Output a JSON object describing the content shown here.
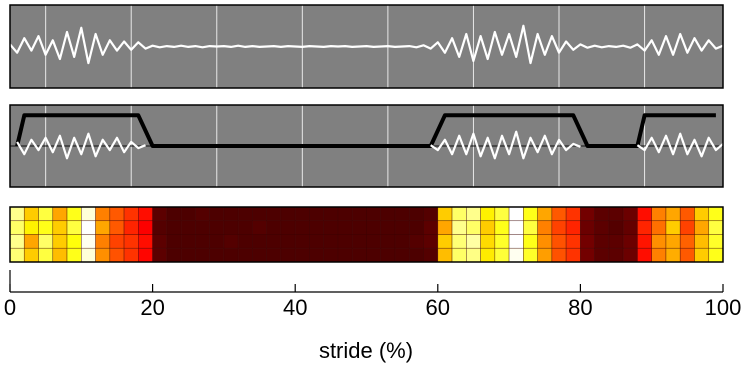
{
  "chart_data": [
    {
      "type": "line",
      "xlim": [
        0,
        100
      ],
      "ylim": [
        -1,
        1
      ],
      "xgrid": [
        5,
        17,
        29,
        41,
        53,
        65,
        77,
        89
      ],
      "x": [
        0,
        1,
        2,
        3,
        4,
        5,
        6,
        7,
        8,
        9,
        10,
        11,
        12,
        13,
        14,
        15,
        16,
        17,
        18,
        19,
        20,
        21,
        22,
        23,
        24,
        25,
        26,
        27,
        28,
        29,
        30,
        31,
        32,
        33,
        34,
        35,
        36,
        37,
        38,
        39,
        40,
        41,
        42,
        43,
        44,
        45,
        46,
        47,
        48,
        49,
        50,
        51,
        52,
        53,
        54,
        55,
        56,
        57,
        58,
        59,
        60,
        61,
        62,
        63,
        64,
        65,
        66,
        67,
        68,
        69,
        70,
        71,
        72,
        73,
        74,
        75,
        76,
        77,
        78,
        79,
        80,
        81,
        82,
        83,
        84,
        85,
        86,
        87,
        88,
        89,
        90,
        91,
        92,
        93,
        94,
        95,
        96,
        97,
        98,
        99,
        100
      ],
      "series": [
        {
          "color": "#ffffff",
          "values": [
            0.05,
            -0.15,
            0.2,
            -0.1,
            0.25,
            -0.2,
            0.15,
            -0.3,
            0.35,
            -0.25,
            0.45,
            -0.4,
            0.3,
            -0.2,
            0.15,
            -0.1,
            0.12,
            -0.08,
            0.1,
            -0.05,
            0.02,
            -0.02,
            0.01,
            -0.01,
            0.02,
            -0.01,
            0.01,
            -0.02,
            0.01,
            0.0,
            0.01,
            -0.01,
            0.02,
            -0.01,
            0.01,
            -0.01,
            0.0,
            0.01,
            -0.01,
            0.01,
            0.0,
            -0.01,
            0.01,
            0.0,
            -0.01,
            0.01,
            0.0,
            0.01,
            -0.01,
            0.0,
            0.01,
            -0.01,
            0.0,
            0.01,
            -0.01,
            0.0,
            0.01,
            -0.02,
            0.03,
            -0.05,
            0.1,
            -0.15,
            0.2,
            -0.25,
            0.3,
            -0.35,
            0.25,
            -0.3,
            0.35,
            -0.2,
            0.3,
            -0.25,
            0.5,
            -0.4,
            0.3,
            -0.2,
            0.25,
            -0.15,
            0.12,
            -0.08,
            0.05,
            -0.03,
            0.02,
            -0.02,
            0.01,
            -0.01,
            0.02,
            -0.03,
            0.05,
            -0.1,
            0.15,
            -0.2,
            0.25,
            -0.2,
            0.3,
            -0.15,
            0.2,
            -0.1,
            0.15,
            -0.05,
            0.02
          ]
        }
      ]
    },
    {
      "type": "line",
      "xlim": [
        0,
        100
      ],
      "ylim": [
        -1,
        1
      ],
      "xgrid": [
        5,
        17,
        29,
        41,
        53,
        65,
        77,
        89
      ],
      "x": [
        0,
        1,
        2,
        3,
        4,
        5,
        6,
        7,
        8,
        9,
        10,
        11,
        12,
        13,
        14,
        15,
        16,
        17,
        18,
        19,
        20,
        21,
        22,
        23,
        24,
        25,
        26,
        27,
        28,
        29,
        30,
        31,
        32,
        33,
        34,
        35,
        36,
        37,
        38,
        39,
        40,
        41,
        42,
        43,
        44,
        45,
        46,
        47,
        48,
        49,
        50,
        51,
        52,
        53,
        54,
        55,
        56,
        57,
        58,
        59,
        60,
        61,
        62,
        63,
        64,
        65,
        66,
        67,
        68,
        69,
        70,
        71,
        72,
        73,
        74,
        75,
        76,
        77,
        78,
        79,
        80,
        81,
        82,
        83,
        84,
        85,
        86,
        87,
        88,
        89,
        90,
        91,
        92,
        93,
        94,
        95,
        96,
        97,
        98,
        99,
        100
      ],
      "series": [
        {
          "color": "#ffffff",
          "values": [
            null,
            0.1,
            -0.2,
            0.15,
            -0.1,
            0.2,
            -0.15,
            0.25,
            -0.3,
            0.2,
            -0.2,
            0.3,
            -0.25,
            0.15,
            -0.1,
            0.2,
            -0.15,
            0.1,
            -0.05,
            0.02,
            null,
            null,
            null,
            null,
            null,
            null,
            null,
            null,
            null,
            null,
            null,
            null,
            null,
            null,
            null,
            null,
            null,
            null,
            null,
            null,
            null,
            null,
            null,
            null,
            null,
            null,
            null,
            null,
            null,
            null,
            null,
            null,
            null,
            null,
            null,
            null,
            null,
            null,
            null,
            0.02,
            -0.1,
            0.15,
            -0.2,
            0.25,
            -0.2,
            0.3,
            -0.25,
            0.2,
            -0.3,
            0.25,
            -0.2,
            0.35,
            -0.3,
            0.2,
            -0.15,
            0.25,
            -0.2,
            0.15,
            -0.1,
            0.05,
            -0.02,
            null,
            null,
            null,
            null,
            null,
            null,
            null,
            0.02,
            -0.1,
            0.2,
            -0.15,
            0.25,
            -0.2,
            0.3,
            -0.2,
            0.15,
            -0.25,
            0.2,
            -0.1,
            0.05
          ]
        }
      ],
      "envelope": {
        "color": "#000000",
        "x": [
          1,
          2,
          18,
          20,
          59,
          61,
          79,
          81,
          88,
          89,
          99
        ],
        "values": [
          0,
          0.75,
          0.75,
          0,
          0,
          0.75,
          0.75,
          0,
          0,
          0.75,
          0.75
        ]
      }
    },
    {
      "type": "heatmap",
      "xlim": [
        0,
        100
      ],
      "xticks": [
        0,
        20,
        40,
        60,
        80,
        100
      ],
      "xlabel": "stride (%)",
      "colormap": "hot",
      "clim": [
        0,
        1
      ],
      "values": [
        [
          0.85,
          0.6,
          0.75,
          0.55,
          0.7,
          0.95,
          0.5,
          0.45,
          0.4,
          0.35,
          0.12,
          0.1,
          0.1,
          0.11,
          0.1,
          0.1,
          0.1,
          0.1,
          0.1,
          0.1,
          0.1,
          0.1,
          0.1,
          0.1,
          0.1,
          0.1,
          0.1,
          0.1,
          0.1,
          0.11,
          0.6,
          0.8,
          0.85,
          0.65,
          0.75,
          1.0,
          0.7,
          0.55,
          0.45,
          0.4,
          0.15,
          0.12,
          0.12,
          0.14,
          0.35,
          0.5,
          0.55,
          0.45,
          0.6,
          0.7
        ],
        [
          0.8,
          0.65,
          0.7,
          0.6,
          0.75,
          1.0,
          0.55,
          0.45,
          0.38,
          0.33,
          0.11,
          0.1,
          0.1,
          0.1,
          0.1,
          0.1,
          0.1,
          0.11,
          0.1,
          0.1,
          0.1,
          0.1,
          0.1,
          0.1,
          0.1,
          0.1,
          0.1,
          0.1,
          0.1,
          0.12,
          0.55,
          0.85,
          0.8,
          0.6,
          0.7,
          1.0,
          0.75,
          0.5,
          0.42,
          0.38,
          0.14,
          0.12,
          0.11,
          0.13,
          0.38,
          0.48,
          0.6,
          0.42,
          0.55,
          0.75
        ],
        [
          0.85,
          0.55,
          0.8,
          0.6,
          0.68,
          0.98,
          0.5,
          0.42,
          0.4,
          0.35,
          0.12,
          0.1,
          0.1,
          0.1,
          0.1,
          0.11,
          0.1,
          0.1,
          0.1,
          0.1,
          0.1,
          0.1,
          0.1,
          0.1,
          0.1,
          0.1,
          0.1,
          0.1,
          0.11,
          0.12,
          0.6,
          0.82,
          0.88,
          0.62,
          0.72,
          1.0,
          0.7,
          0.52,
          0.44,
          0.4,
          0.15,
          0.12,
          0.12,
          0.14,
          0.36,
          0.52,
          0.55,
          0.46,
          0.58,
          0.72
        ],
        [
          0.82,
          0.6,
          0.75,
          0.58,
          0.7,
          0.95,
          0.52,
          0.44,
          0.4,
          0.34,
          0.12,
          0.1,
          0.1,
          0.1,
          0.1,
          0.1,
          0.1,
          0.1,
          0.1,
          0.1,
          0.1,
          0.1,
          0.1,
          0.1,
          0.1,
          0.1,
          0.1,
          0.1,
          0.1,
          0.11,
          0.58,
          0.8,
          0.84,
          0.64,
          0.74,
          0.98,
          0.72,
          0.54,
          0.44,
          0.4,
          0.15,
          0.12,
          0.12,
          0.14,
          0.35,
          0.5,
          0.56,
          0.45,
          0.6,
          0.7
        ]
      ]
    }
  ]
}
